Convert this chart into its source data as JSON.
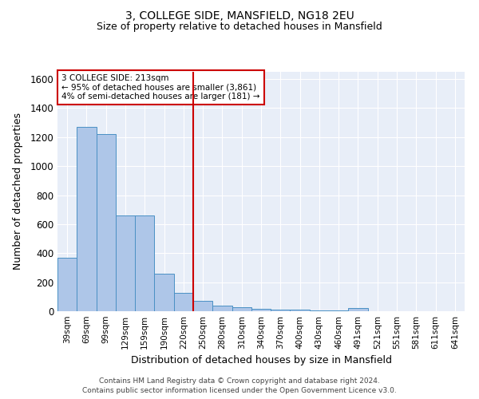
{
  "title": "3, COLLEGE SIDE, MANSFIELD, NG18 2EU",
  "subtitle": "Size of property relative to detached houses in Mansfield",
  "xlabel": "Distribution of detached houses by size in Mansfield",
  "ylabel": "Number of detached properties",
  "footnote1": "Contains HM Land Registry data © Crown copyright and database right 2024.",
  "footnote2": "Contains public sector information licensed under the Open Government Licence v3.0.",
  "bar_labels": [
    "39sqm",
    "69sqm",
    "99sqm",
    "129sqm",
    "159sqm",
    "190sqm",
    "220sqm",
    "250sqm",
    "280sqm",
    "310sqm",
    "340sqm",
    "370sqm",
    "400sqm",
    "430sqm",
    "460sqm",
    "491sqm",
    "521sqm",
    "551sqm",
    "581sqm",
    "611sqm",
    "641sqm"
  ],
  "bar_values": [
    370,
    1270,
    1220,
    660,
    660,
    260,
    125,
    70,
    40,
    30,
    18,
    12,
    10,
    8,
    6,
    22,
    0,
    0,
    0,
    0,
    0
  ],
  "bar_color": "#aec6e8",
  "bar_edge_color": "#4a90c4",
  "bg_color": "#e8eef8",
  "grid_color": "#ffffff",
  "red_line_x": 6.5,
  "annotation_text": "3 COLLEGE SIDE: 213sqm\n← 95% of detached houses are smaller (3,861)\n4% of semi-detached houses are larger (181) →",
  "annotation_box_color": "#ffffff",
  "annotation_box_edge": "#cc0000",
  "annotation_text_size": 7.5,
  "title_fontsize": 10,
  "subtitle_fontsize": 9,
  "ylim": [
    0,
    1650
  ],
  "yticks": [
    0,
    200,
    400,
    600,
    800,
    1000,
    1200,
    1400,
    1600
  ]
}
